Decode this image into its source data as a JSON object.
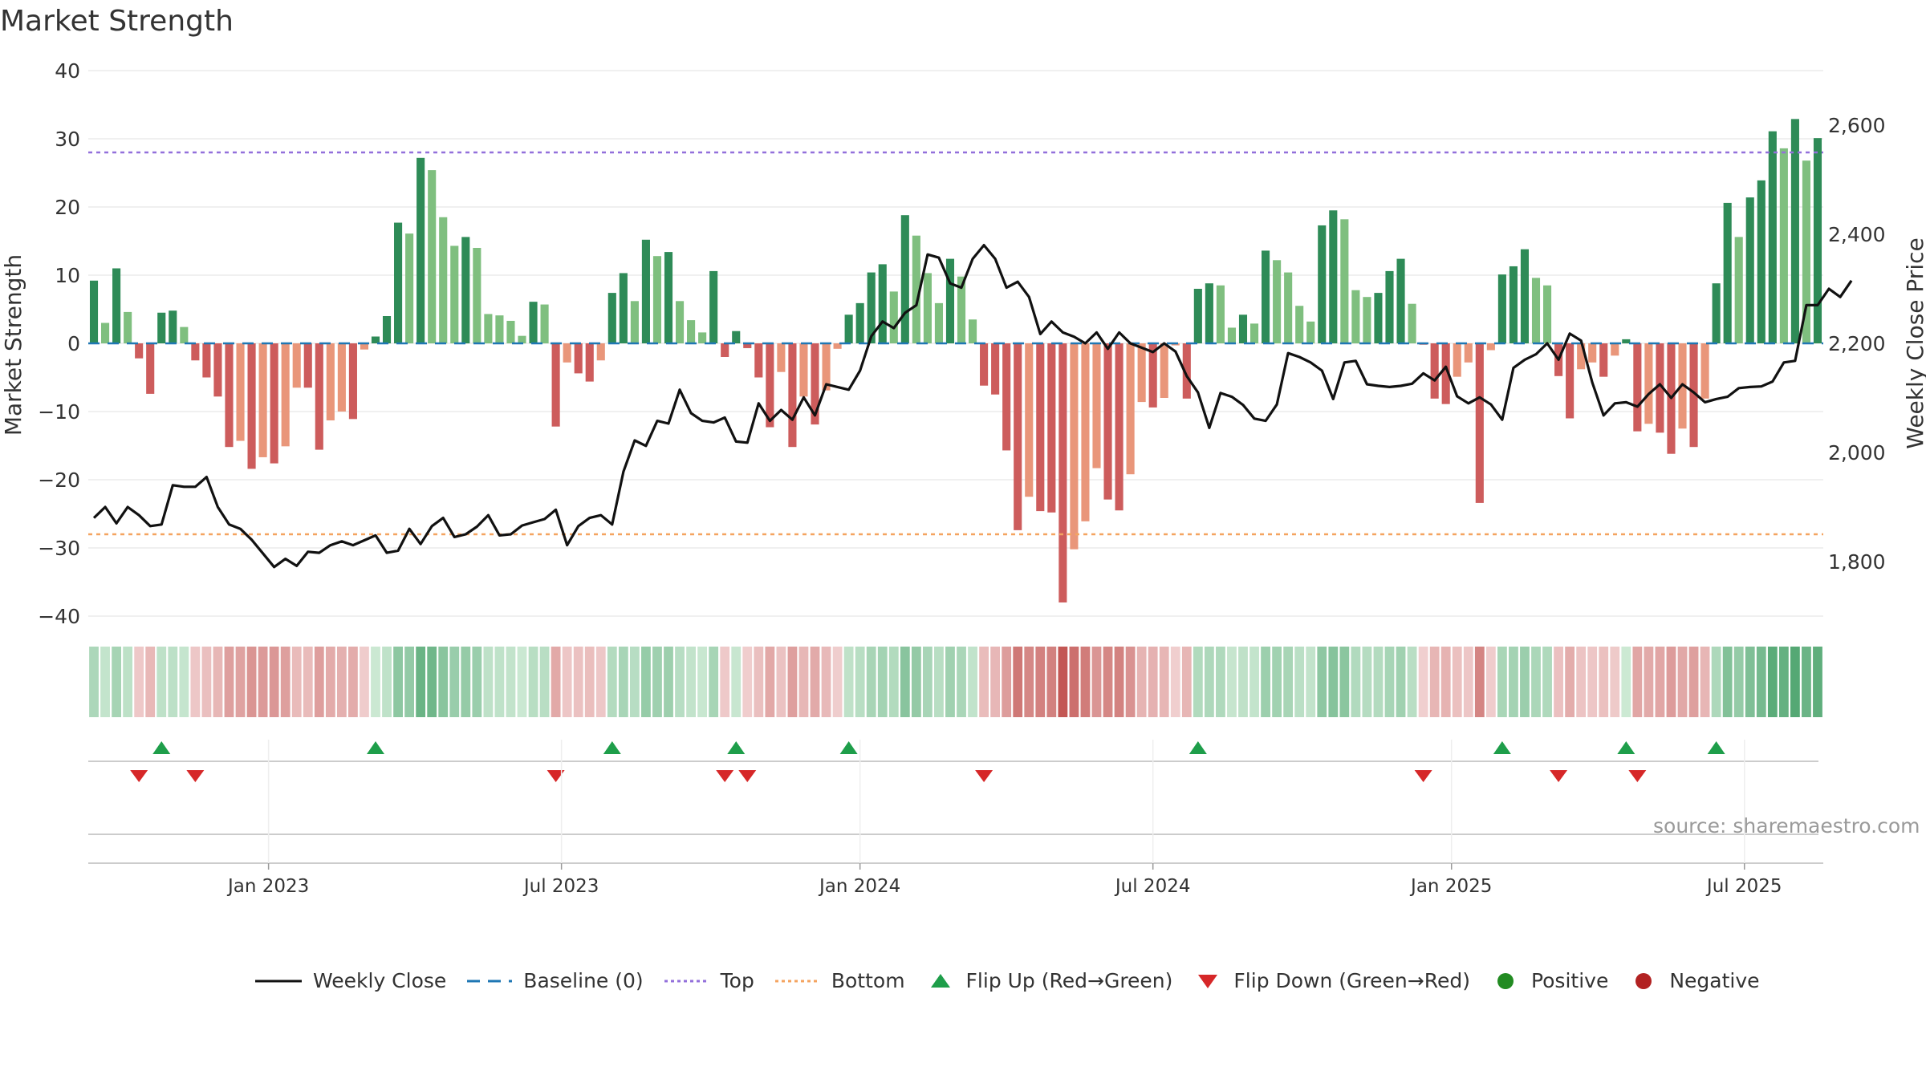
{
  "title": "Market Strength",
  "source": "source: sharemaestro.com",
  "colors": {
    "pos_strong": "#2e8b57",
    "pos_weak": "#7fbf7f",
    "neg_strong": "#cd5c5c",
    "neg_weak": "#e9967a",
    "line": "#111111",
    "baseline": "#1f77b4",
    "top": "#9370db",
    "bottom": "#f4a460",
    "flip_up": "#1e9e4a",
    "flip_down": "#d62728",
    "positive": "#228b22",
    "negative": "#b22222"
  },
  "legend": {
    "weekly_close": "Weekly Close",
    "baseline": "Baseline (0)",
    "top": "Top",
    "bottom": "Bottom",
    "flip_up": "Flip Up (Red→Green)",
    "flip_down": "Flip Down (Green→Red)",
    "positive": "Positive",
    "negative": "Negative"
  },
  "chart_data": {
    "type": "bar",
    "title": "Market Strength",
    "ylabel": "Market Strength",
    "y2label": "Weekly Close Price",
    "ylim": [
      -40,
      40
    ],
    "y2lim": [
      1700,
      2700
    ],
    "yticks": [
      "40",
      "30",
      "20",
      "10",
      "0",
      "−10",
      "−20",
      "−30",
      "−40"
    ],
    "y2ticks": [
      "2,600",
      "2,400",
      "2,200",
      "2,000",
      "1,800"
    ],
    "xticks": [
      {
        "label": "Jan 2023",
        "week": 16
      },
      {
        "label": "Jul 2023",
        "week": 42
      },
      {
        "label": "Jan 2024",
        "week": 68.5
      },
      {
        "label": "Jul 2024",
        "week": 94.5
      },
      {
        "label": "Jan 2025",
        "week": 121
      },
      {
        "label": "Jul 2025",
        "week": 147
      }
    ],
    "top_line": 28,
    "bottom_line": -28,
    "baseline": 0,
    "strength": [
      9.2,
      3,
      11,
      4.6,
      -2.2,
      -7.4,
      4.5,
      4.8,
      2.4,
      -2.5,
      -5,
      -7.8,
      -15.2,
      -14.3,
      -18.4,
      -16.7,
      -17.6,
      -15.1,
      -6.5,
      -6.5,
      -15.6,
      -11.3,
      -10,
      -11.1,
      -0.9,
      1,
      4,
      17.7,
      16.1,
      27.2,
      25.4,
      18.5,
      14.3,
      15.6,
      14,
      4.3,
      4.1,
      3.3,
      1.1,
      6.1,
      5.7,
      -12.2,
      -2.8,
      -4.4,
      -5.6,
      -2.5,
      7.4,
      10.3,
      6.2,
      15.2,
      12.8,
      13.4,
      6.2,
      3.4,
      1.6,
      10.6,
      -2,
      1.8,
      -0.7,
      -5,
      -12.3,
      -4.2,
      -15.2,
      -7.8,
      -11.9,
      -6.9,
      -0.8,
      4.2,
      5.9,
      10.4,
      11.6,
      7.6,
      18.8,
      15.8,
      10.3,
      5.9,
      12.4,
      9.8,
      3.5,
      -6.2,
      -7.5,
      -15.7,
      -27.4,
      -22.5,
      -24.6,
      -24.8,
      -38,
      -30.2,
      -26.1,
      -18.3,
      -22.9,
      -24.5,
      -19.2,
      -8.6,
      -9.4,
      -8,
      -0.3,
      -8.1,
      8,
      8.8,
      8.5,
      2.3,
      4.2,
      2.9,
      13.6,
      12.2,
      10.4,
      5.5,
      3.2,
      17.3,
      19.5,
      18.2,
      7.8,
      6.8,
      7.4,
      10.6,
      12.4,
      5.8,
      -0.2,
      -8.1,
      -8.9,
      -4.9,
      -2.8,
      -23.4,
      -1,
      10.1,
      11.3,
      13.8,
      9.6,
      8.5,
      -4.8,
      -11,
      -3.8,
      -2.8,
      -4.9,
      -1.8,
      0.6,
      -12.9,
      -11.8,
      -13.1,
      -16.2,
      -12.5,
      -15.2,
      -8.1,
      8.8,
      20.6,
      15.6,
      21.4,
      23.9,
      31.1,
      28.6,
      32.9,
      26.8,
      30.1
    ],
    "weekly_close": [
      1880,
      1900,
      1870,
      1900,
      1885,
      1865,
      1868,
      1940,
      1937,
      1937,
      1955,
      1900,
      1868,
      1860,
      1840,
      1815,
      1790,
      1805,
      1792,
      1818,
      1816,
      1830,
      1837,
      1830,
      1839,
      1848,
      1816,
      1820,
      1860,
      1832,
      1865,
      1880,
      1845,
      1850,
      1864,
      1885,
      1848,
      1850,
      1866,
      1872,
      1878,
      1895,
      1830,
      1865,
      1880,
      1885,
      1868,
      1965,
      2022,
      2012,
      2058,
      2053,
      2115,
      2072,
      2058,
      2055,
      2064,
      2020,
      2018,
      2090,
      2058,
      2078,
      2060,
      2101,
      2068,
      2125,
      2120,
      2115,
      2150,
      2213,
      2240,
      2228,
      2256,
      2270,
      2363,
      2357,
      2310,
      2302,
      2355,
      2380,
      2355,
      2302,
      2313,
      2285,
      2217,
      2240,
      2220,
      2212,
      2200,
      2220,
      2190,
      2220,
      2200,
      2192,
      2184,
      2200,
      2185,
      2140,
      2110,
      2045,
      2109,
      2102,
      2087,
      2062,
      2058,
      2088,
      2182,
      2175,
      2165,
      2150,
      2098,
      2165,
      2168,
      2125,
      2122,
      2120,
      2122,
      2126,
      2145,
      2132,
      2157,
      2103,
      2090,
      2101,
      2088,
      2060,
      2155,
      2170,
      2180,
      2200,
      2170,
      2218,
      2205,
      2128,
      2068,
      2090,
      2092,
      2084,
      2107,
      2125,
      2100,
      2125,
      2110,
      2092,
      2098,
      2102,
      2118,
      2120,
      2121,
      2130,
      2165,
      2168,
      2270,
      2270,
      2300,
      2285,
      2315
    ]
  }
}
